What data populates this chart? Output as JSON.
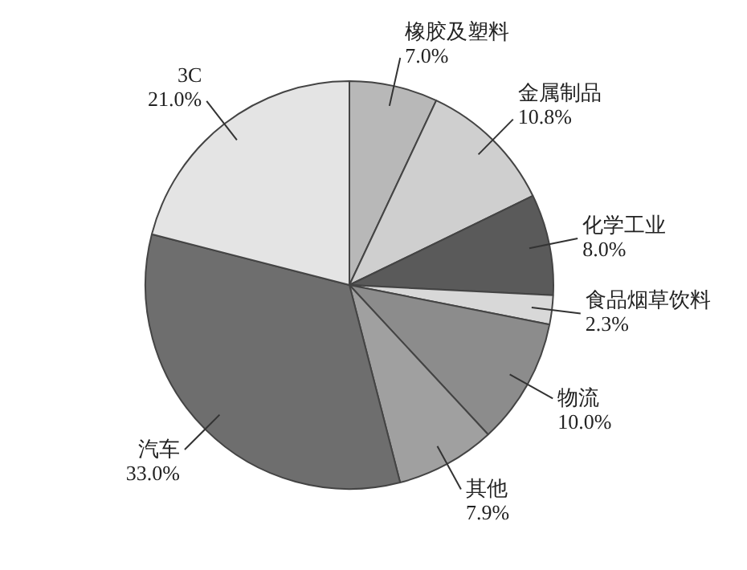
{
  "chart_data": {
    "type": "pie",
    "categories": [
      "橡胶及塑料",
      "金属制品",
      "化学工业",
      "食品烟草饮料",
      "物流",
      "其他",
      "汽车",
      "3C"
    ],
    "values": [
      7.0,
      10.8,
      8.0,
      2.3,
      10.0,
      7.9,
      33.0,
      21.0
    ],
    "value_labels": [
      "7.0%",
      "10.8%",
      "8.0%",
      "2.3%",
      "10.0%",
      "7.9%",
      "33.0%",
      "21.0%"
    ],
    "colors": [
      "#b8b8b8",
      "#cfcfcf",
      "#5a5a5a",
      "#d8d8d8",
      "#8c8c8c",
      "#a0a0a0",
      "#6e6e6e",
      "#e4e4e4"
    ],
    "legend": false
  }
}
